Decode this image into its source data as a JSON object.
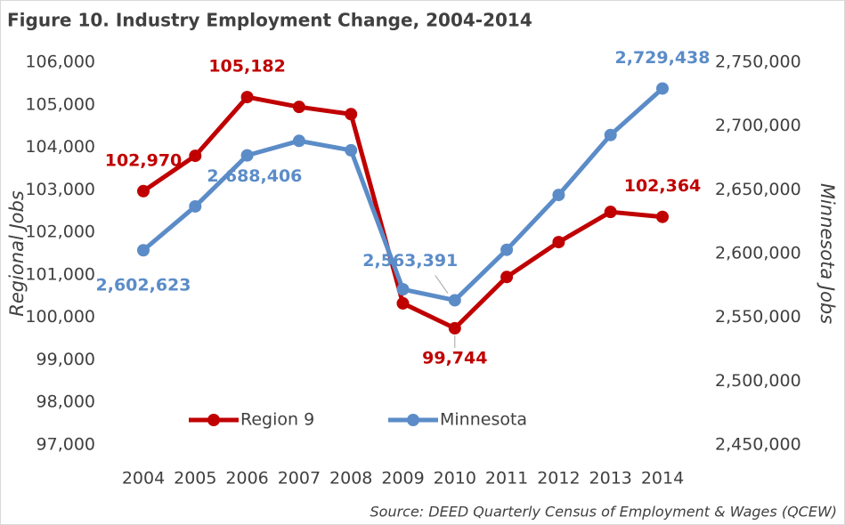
{
  "chart_data": {
    "type": "line",
    "title": "Figure 10. Industry Employment Change, 2004-2014",
    "source": "Source: DEED Quarterly Census of Employment & Wages (QCEW)",
    "y_label": "Regional Jobs",
    "y2_label": "Minnesota Jobs",
    "categories": [
      "2004",
      "2005",
      "2006",
      "2007",
      "2008",
      "2009",
      "2010",
      "2011",
      "2012",
      "2013",
      "2014"
    ],
    "series": [
      {
        "name": "Region 9",
        "color": "#c00000",
        "axis": "y",
        "values": [
          102970,
          103800,
          105182,
          104950,
          104780,
          100330,
          99744,
          100950,
          101770,
          102480,
          102364
        ],
        "value_labels": [
          "102,970",
          null,
          "105,182",
          null,
          null,
          null,
          "99,744",
          null,
          null,
          null,
          "102,364"
        ]
      },
      {
        "name": "Minnesota",
        "color": "#5b8cc8",
        "axis": "y2",
        "values": [
          2602623,
          2637000,
          2677000,
          2688406,
          2681000,
          2572000,
          2563391,
          2603000,
          2646000,
          2693000,
          2729438
        ],
        "value_labels": [
          "2,602,623",
          null,
          null,
          "2,688,406",
          null,
          null,
          "2,563,391",
          null,
          null,
          null,
          "2,729,438"
        ]
      }
    ],
    "ylim": [
      97000,
      106000
    ],
    "yticks": [
      {
        "value": 97000,
        "label": "97,000"
      },
      {
        "value": 98000,
        "label": "98,000"
      },
      {
        "value": 99000,
        "label": "99,000"
      },
      {
        "value": 100000,
        "label": "100,000"
      },
      {
        "value": 101000,
        "label": "101,000"
      },
      {
        "value": 102000,
        "label": "102,000"
      },
      {
        "value": 103000,
        "label": "103,000"
      },
      {
        "value": 104000,
        "label": "104,000"
      },
      {
        "value": 105000,
        "label": "105,000"
      },
      {
        "value": 106000,
        "label": "106,000"
      }
    ],
    "y2lim": [
      2450000,
      2750000
    ],
    "y2ticks": [
      {
        "value": 2450000,
        "label": "2,450,000"
      },
      {
        "value": 2500000,
        "label": "2,500,000"
      },
      {
        "value": 2550000,
        "label": "2,550,000"
      },
      {
        "value": 2600000,
        "label": "2,600,000"
      },
      {
        "value": 2650000,
        "label": "2,650,000"
      },
      {
        "value": 2700000,
        "label": "2,700,000"
      },
      {
        "value": 2750000,
        "label": "2,750,000"
      }
    ],
    "grid": false,
    "legend": "bottom"
  }
}
